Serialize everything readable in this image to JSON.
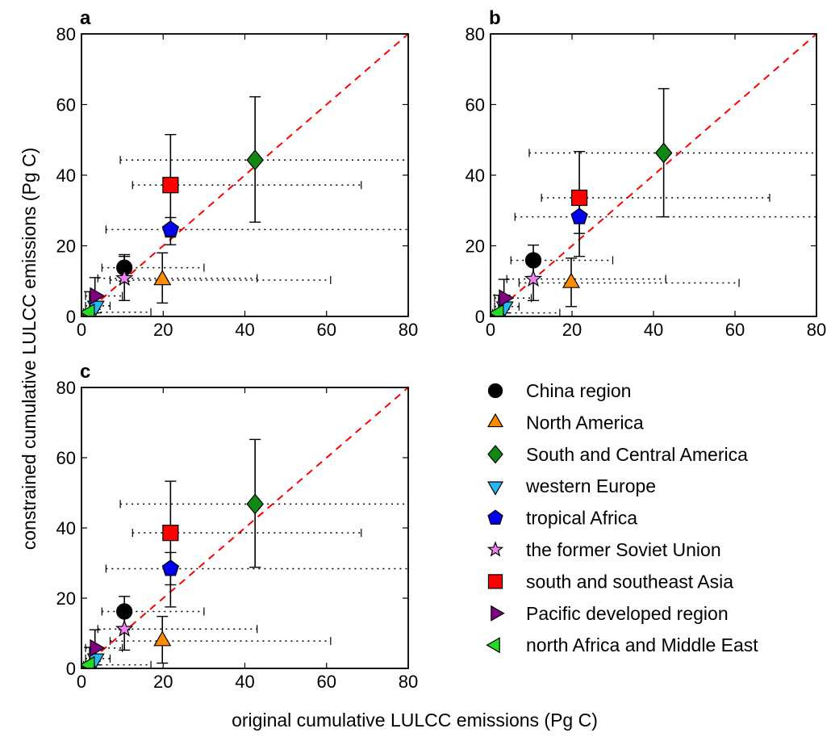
{
  "figure": {
    "xlabel": "original cumulative LULCC emissions (Pg C)",
    "ylabel": "constrained cumulative LULCC emissions (Pg C)"
  },
  "styles": {
    "China region": {
      "marker": "circle",
      "color": "#000000"
    },
    "North America": {
      "marker": "triangle-up",
      "color": "#ff8c00"
    },
    "South and Central America": {
      "marker": "diamond",
      "color": "#118811"
    },
    "western Europe": {
      "marker": "triangle-down",
      "color": "#29b6f6"
    },
    "tropical Africa": {
      "marker": "pentagon",
      "color": "#0000ee"
    },
    "the former Soviet Union": {
      "marker": "star",
      "color": "#ee82ee"
    },
    "south and southeast Asia": {
      "marker": "square",
      "color": "#ff0000"
    },
    "Pacific developed region": {
      "marker": "triangle-right",
      "color": "#800080"
    },
    "north Africa and Middle East": {
      "marker": "triangle-left",
      "color": "#22dd22"
    }
  },
  "legend": [
    "China region",
    "North America",
    "South and Central America",
    "western Europe",
    "tropical Africa",
    "the former Soviet Union",
    "south and southeast Asia",
    "Pacific developed region",
    "north Africa and Middle East"
  ],
  "chart_data": [
    {
      "type": "scatter",
      "panel": "a",
      "xlim": [
        0,
        80
      ],
      "ylim": [
        0,
        80
      ],
      "xticks": [
        0,
        20,
        40,
        60,
        80
      ],
      "yticks": [
        0,
        20,
        40,
        60,
        80
      ],
      "reference_line": "y = x (red dashed)",
      "series": [
        {
          "name": "China region",
          "x": 10.5,
          "y": 13.8,
          "xerr": [
            5,
            30
          ],
          "yerr": [
            10,
            17.5
          ]
        },
        {
          "name": "North America",
          "x": 19.8,
          "y": 10.3,
          "xerr": [
            7,
            61
          ],
          "yerr": [
            3.8,
            18
          ]
        },
        {
          "name": "South and Central America",
          "x": 42.5,
          "y": 44.3,
          "xerr": [
            9.5,
            80
          ],
          "yerr": [
            26.7,
            62.2
          ]
        },
        {
          "name": "western Europe",
          "x": 3.5,
          "y": 3.0,
          "xerr": [
            1,
            7
          ],
          "yerr": [
            1,
            6
          ]
        },
        {
          "name": "tropical Africa",
          "x": 21.8,
          "y": 24.6,
          "xerr": [
            6,
            80
          ],
          "yerr": [
            20.3,
            28
          ]
        },
        {
          "name": "the former Soviet Union",
          "x": 10.5,
          "y": 10.8,
          "xerr": [
            4,
            43
          ],
          "yerr": [
            4.5,
            17
          ]
        },
        {
          "name": "south and southeast Asia",
          "x": 21.8,
          "y": 37.2,
          "xerr": [
            12.5,
            68.5
          ],
          "yerr": [
            22.5,
            51.5
          ]
        },
        {
          "name": "Pacific developed region",
          "x": 3.3,
          "y": 5.8,
          "xerr": [
            1,
            10
          ],
          "yerr": [
            2,
            11
          ]
        },
        {
          "name": "north Africa and Middle East",
          "x": 2.0,
          "y": 1.2,
          "xerr": [
            0.5,
            17
          ],
          "yerr": [
            0,
            7
          ]
        }
      ]
    },
    {
      "type": "scatter",
      "panel": "b",
      "xlim": [
        0,
        80
      ],
      "ylim": [
        0,
        80
      ],
      "xticks": [
        0,
        20,
        40,
        60,
        80
      ],
      "yticks": [
        0,
        20,
        40,
        60,
        80
      ],
      "reference_line": "y = x (red dashed)",
      "series": [
        {
          "name": "China region",
          "x": 10.5,
          "y": 15.9,
          "xerr": [
            5,
            30
          ],
          "yerr": [
            11,
            20.2
          ]
        },
        {
          "name": "North America",
          "x": 19.8,
          "y": 9.5,
          "xerr": [
            7,
            61
          ],
          "yerr": [
            2.8,
            16.5
          ]
        },
        {
          "name": "South and Central America",
          "x": 42.5,
          "y": 46.3,
          "xerr": [
            9.5,
            80
          ],
          "yerr": [
            28.2,
            64.5
          ]
        },
        {
          "name": "western Europe",
          "x": 3.5,
          "y": 2.8,
          "xerr": [
            1,
            7
          ],
          "yerr": [
            1,
            6
          ]
        },
        {
          "name": "tropical Africa",
          "x": 21.8,
          "y": 28.2,
          "xerr": [
            6,
            80
          ],
          "yerr": [
            23.5,
            33
          ]
        },
        {
          "name": "the former Soviet Union",
          "x": 10.5,
          "y": 10.6,
          "xerr": [
            4,
            43
          ],
          "yerr": [
            4.5,
            17
          ]
        },
        {
          "name": "south and southeast Asia",
          "x": 21.8,
          "y": 33.6,
          "xerr": [
            12.5,
            68.5
          ],
          "yerr": [
            17,
            46.7
          ]
        },
        {
          "name": "Pacific developed region",
          "x": 3.3,
          "y": 5.2,
          "xerr": [
            1,
            10
          ],
          "yerr": [
            2,
            10.5
          ]
        },
        {
          "name": "north Africa and Middle East",
          "x": 2.0,
          "y": 1.0,
          "xerr": [
            0.5,
            17
          ],
          "yerr": [
            0,
            6
          ]
        }
      ]
    },
    {
      "type": "scatter",
      "panel": "c",
      "xlim": [
        0,
        80
      ],
      "ylim": [
        0,
        80
      ],
      "xticks": [
        0,
        20,
        40,
        60,
        80
      ],
      "yticks": [
        0,
        20,
        40,
        60,
        80
      ],
      "reference_line": "y = x (red dashed)",
      "series": [
        {
          "name": "China region",
          "x": 10.5,
          "y": 16.2,
          "xerr": [
            5,
            30
          ],
          "yerr": [
            11,
            20.5
          ]
        },
        {
          "name": "North America",
          "x": 19.8,
          "y": 7.8,
          "xerr": [
            7,
            61
          ],
          "yerr": [
            1.5,
            14.8
          ]
        },
        {
          "name": "South and Central America",
          "x": 42.5,
          "y": 46.8,
          "xerr": [
            9.5,
            80
          ],
          "yerr": [
            28.8,
            65.2
          ]
        },
        {
          "name": "western Europe",
          "x": 3.5,
          "y": 2.8,
          "xerr": [
            1,
            7
          ],
          "yerr": [
            1,
            6
          ]
        },
        {
          "name": "tropical Africa",
          "x": 21.8,
          "y": 28.4,
          "xerr": [
            6,
            80
          ],
          "yerr": [
            23.8,
            33
          ]
        },
        {
          "name": "the former Soviet Union",
          "x": 10.5,
          "y": 11.2,
          "xerr": [
            4,
            43
          ],
          "yerr": [
            5.2,
            17
          ]
        },
        {
          "name": "south and southeast Asia",
          "x": 21.8,
          "y": 38.6,
          "xerr": [
            12.5,
            68.5
          ],
          "yerr": [
            17.5,
            53.3
          ]
        },
        {
          "name": "Pacific developed region",
          "x": 3.3,
          "y": 5.8,
          "xerr": [
            1,
            10
          ],
          "yerr": [
            2,
            11
          ]
        },
        {
          "name": "north Africa and Middle East",
          "x": 2.0,
          "y": 1.0,
          "xerr": [
            0.5,
            17
          ],
          "yerr": [
            0,
            6
          ]
        }
      ]
    }
  ]
}
